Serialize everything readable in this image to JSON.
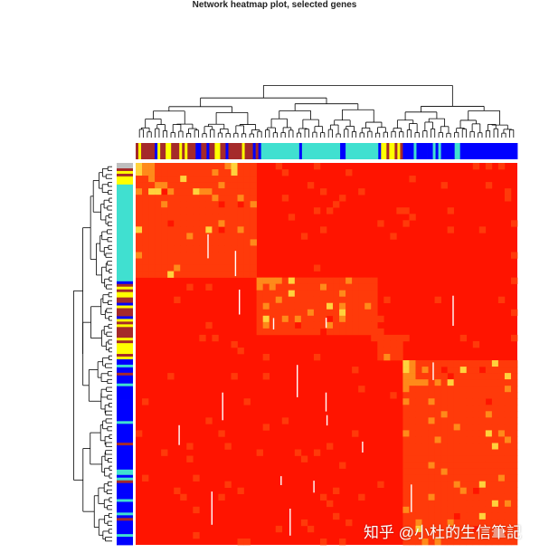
{
  "chart_data": {
    "type": "heatmap",
    "title": "Network heatmap plot, selected genes",
    "xlabel": "",
    "ylabel": "",
    "color_scale": [
      "#fff7a0",
      "#ffd23c",
      "#ff8a1a",
      "#ff3a0a",
      "#ff1400"
    ],
    "module_colors": {
      "turquoise": "#40e0d0",
      "blue": "#0000ff",
      "brown": "#a52a2a",
      "yellow": "#ffff00",
      "grey": "#bebebe"
    },
    "modules_top": [
      {
        "name": "brown",
        "fraction": 0.32
      },
      {
        "name": "turquoise",
        "fraction": 0.32
      },
      {
        "name": "yellow",
        "fraction": 0.06
      },
      {
        "name": "blue",
        "fraction": 0.3
      }
    ],
    "modules_side": [
      {
        "name": "turquoise",
        "fraction": 0.3
      },
      {
        "name": "brown",
        "fraction": 0.15
      },
      {
        "name": "yellow",
        "fraction": 0.06
      },
      {
        "name": "blue",
        "fraction": 0.49
      }
    ]
  },
  "watermark": "知乎 @小杜的生信筆記"
}
